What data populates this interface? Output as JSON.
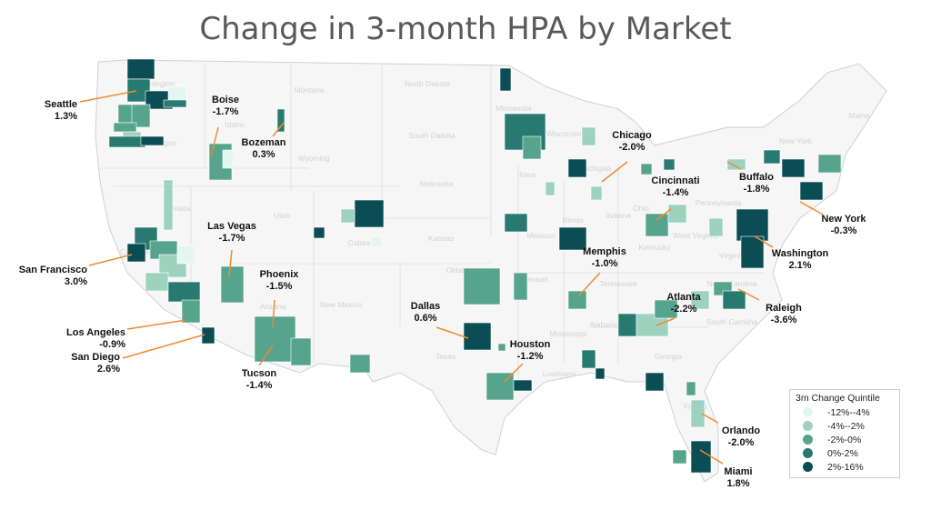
{
  "title": "Change in 3-month HPA by Market",
  "legend": {
    "title": "3m Change Quintile",
    "items": [
      {
        "label": "-12%--4%",
        "color": "#e3f7f0"
      },
      {
        "label": "-4%--2%",
        "color": "#9dd2bf"
      },
      {
        "label": "-2%-0%",
        "color": "#55a48b"
      },
      {
        "label": "0%-2%",
        "color": "#287a70"
      },
      {
        "label": "2%-16%",
        "color": "#0b4d55"
      }
    ]
  },
  "callout_color": "#f08a30",
  "markets": [
    {
      "name": "Seattle",
      "value": "1.3%"
    },
    {
      "name": "Boise",
      "value": "-1.7%"
    },
    {
      "name": "Bozeman",
      "value": "0.3%"
    },
    {
      "name": "San Francisco",
      "value": "3.0%"
    },
    {
      "name": "Las Vegas",
      "value": "-1.7%"
    },
    {
      "name": "Phoenix",
      "value": "-1.5%"
    },
    {
      "name": "Los Angeles",
      "value": "-0.9%"
    },
    {
      "name": "San Diego",
      "value": "2.6%"
    },
    {
      "name": "Tucson",
      "value": "-1.4%"
    },
    {
      "name": "Dallas",
      "value": "0.6%"
    },
    {
      "name": "Houston",
      "value": "-1.2%"
    },
    {
      "name": "Memphis",
      "value": "-1.0%"
    },
    {
      "name": "Chicago",
      "value": "-2.0%"
    },
    {
      "name": "Cincinnati",
      "value": "-1.4%"
    },
    {
      "name": "Atlanta",
      "value": "-2.2%"
    },
    {
      "name": "Buffalo",
      "value": "-1.8%"
    },
    {
      "name": "New York",
      "value": "-0.3%"
    },
    {
      "name": "Washington",
      "value": "2.1%"
    },
    {
      "name": "Raleigh",
      "value": "-3.6%"
    },
    {
      "name": "Orlando",
      "value": "-2.0%"
    },
    {
      "name": "Miami",
      "value": "1.8%"
    }
  ],
  "states": [
    "Washington",
    "Montana",
    "North Dakota",
    "Minnesota",
    "South Dakota",
    "Wyoming",
    "Idaho",
    "Oregon",
    "Nevada",
    "Utah",
    "Nebraska",
    "Iowa",
    "Colorado",
    "Kansas",
    "Illinois",
    "Indiana",
    "Ohio",
    "Pennsylvania",
    "Missouri",
    "Kentucky",
    "West Virginia",
    "Virginia",
    "Tennessee",
    "Arkansas",
    "Oklahoma",
    "New Mexico",
    "Arizona",
    "Texas",
    "Mississippi",
    "Alabama",
    "Georgia",
    "North Carolina",
    "South Carolina",
    "Louisiana",
    "Florida",
    "Maine",
    "Michigan",
    "Wisconsin",
    "California",
    "New York"
  ]
}
